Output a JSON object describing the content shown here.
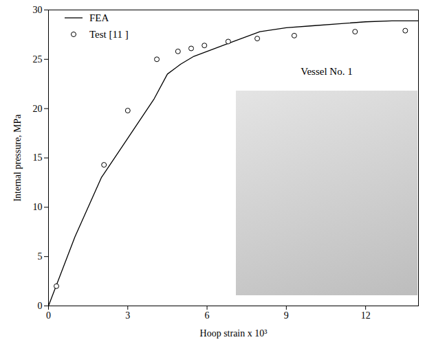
{
  "chart_data": {
    "type": "line",
    "x_label": "Hoop strain x 10³",
    "y_label": "Internal pressure, MPa",
    "xlim": [
      0,
      14
    ],
    "xticks": [
      0,
      3,
      6,
      9,
      12
    ],
    "ylim": [
      0,
      30
    ],
    "yticks": [
      0,
      5,
      10,
      15,
      20,
      25,
      30
    ],
    "grid": false,
    "legend": "top-left",
    "annotations": [
      {
        "text": "Vessel No. 1"
      }
    ],
    "series": [
      {
        "name": "FEA",
        "type": "line",
        "color": "#000000",
        "line_style": "solid",
        "x": [
          0,
          1,
          2,
          3,
          4,
          4.5,
          5,
          5.5,
          6,
          6.5,
          7,
          8,
          9,
          10,
          11,
          12,
          13,
          14
        ],
        "values": [
          0,
          7,
          13,
          17,
          21,
          23.5,
          24.5,
          25.3,
          25.8,
          26.3,
          26.8,
          27.8,
          28.2,
          28.4,
          28.6,
          28.8,
          28.9,
          28.9
        ]
      },
      {
        "name": "Test [11 ]",
        "type": "scatter",
        "color": "#000000",
        "marker": "circle",
        "x": [
          0.3,
          2.1,
          3,
          4.1,
          4.9,
          5.4,
          5.9,
          6.8,
          7.9,
          9.3,
          11.6,
          13.5
        ],
        "values": [
          2,
          14.3,
          19.8,
          25,
          25.8,
          26.1,
          26.4,
          26.8,
          27.1,
          27.4,
          27.8,
          27.9
        ]
      }
    ]
  }
}
